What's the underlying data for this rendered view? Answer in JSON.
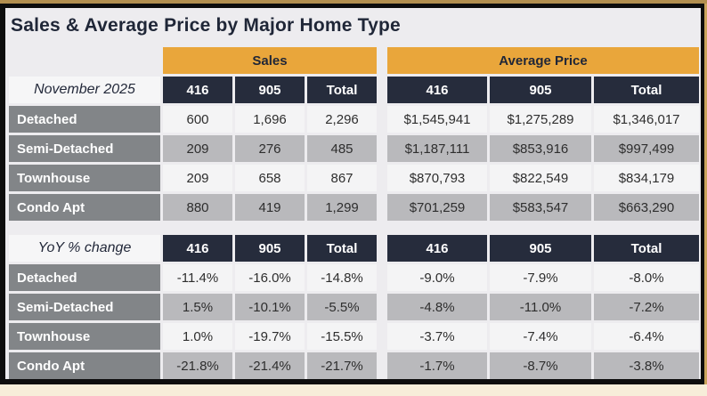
{
  "page": {
    "title": "Sales & Average Price by Major Home Type",
    "colors": {
      "header_gold": "#E9A63B",
      "header_navy": "#262C3C",
      "row_label_gray": "#828588",
      "alt_row_gray": "#B9B9BC",
      "light_row": "#F4F4F5",
      "content_bg": "#EDECEF",
      "frame_black": "#0D0D0D",
      "outer_gold": "#B28F4F",
      "page_cream": "#F7EDD9"
    }
  },
  "chart_data": {
    "type": "table",
    "title": "Sales & Average Price by Major Home Type",
    "column_groups": [
      "Sales",
      "Average Price"
    ],
    "columns": [
      "416",
      "905",
      "Total"
    ],
    "sections": [
      {
        "label": "November 2025",
        "rows": [
          {
            "name": "Detached",
            "sales": [
              "600",
              "1,696",
              "2,296"
            ],
            "avg_price": [
              "$1,545,941",
              "$1,275,289",
              "$1,346,017"
            ]
          },
          {
            "name": "Semi-Detached",
            "sales": [
              "209",
              "276",
              "485"
            ],
            "avg_price": [
              "$1,187,111",
              "$853,916",
              "$997,499"
            ]
          },
          {
            "name": "Townhouse",
            "sales": [
              "209",
              "658",
              "867"
            ],
            "avg_price": [
              "$870,793",
              "$822,549",
              "$834,179"
            ]
          },
          {
            "name": "Condo Apt",
            "sales": [
              "880",
              "419",
              "1,299"
            ],
            "avg_price": [
              "$701,259",
              "$583,547",
              "$663,290"
            ]
          }
        ]
      },
      {
        "label": "YoY % change",
        "rows": [
          {
            "name": "Detached",
            "sales": [
              "-11.4%",
              "-16.0%",
              "-14.8%"
            ],
            "avg_price": [
              "-9.0%",
              "-7.9%",
              "-8.0%"
            ]
          },
          {
            "name": "Semi-Detached",
            "sales": [
              "1.5%",
              "-10.1%",
              "-5.5%"
            ],
            "avg_price": [
              "-4.8%",
              "-11.0%",
              "-7.2%"
            ]
          },
          {
            "name": "Townhouse",
            "sales": [
              "1.0%",
              "-19.7%",
              "-15.5%"
            ],
            "avg_price": [
              "-3.7%",
              "-7.4%",
              "-6.4%"
            ]
          },
          {
            "name": "Condo Apt",
            "sales": [
              "-21.8%",
              "-21.4%",
              "-21.7%"
            ],
            "avg_price": [
              "-1.7%",
              "-8.7%",
              "-3.8%"
            ]
          }
        ]
      }
    ]
  }
}
